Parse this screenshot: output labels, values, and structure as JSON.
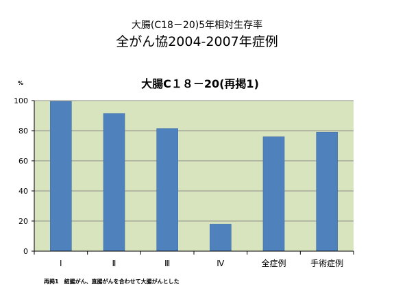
{
  "header": {
    "line1": "大腸(C18－20)5年相対生存率",
    "line2": "全がん協2004-2007年症例"
  },
  "footnote": "再掲1　結腸がん、直腸がんを合わせて大腸がんとした",
  "chart_data": {
    "type": "bar",
    "title": "大腸C１８－20(再掲1)",
    "unit_label": "%",
    "categories": [
      "Ⅰ",
      "Ⅱ",
      "Ⅲ",
      "Ⅳ",
      "全症例",
      "手術症例"
    ],
    "values": [
      99.5,
      91.5,
      81.5,
      18,
      76,
      79
    ],
    "ylim": [
      0,
      100
    ],
    "yticks": [
      0,
      20,
      40,
      60,
      80,
      100
    ],
    "grid": true,
    "legend": "none",
    "colors": {
      "plot_bg": "#d7e4bd",
      "bar": "#4f81bd",
      "gridline": "#8c8c8c"
    }
  }
}
